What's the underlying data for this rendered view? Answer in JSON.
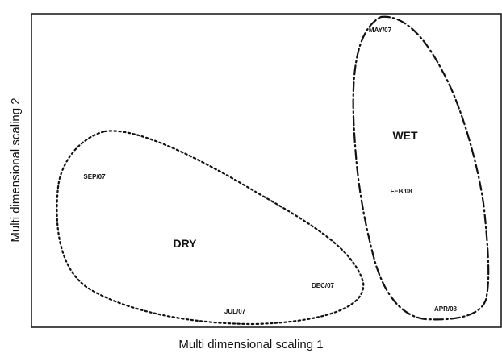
{
  "chart_data": {
    "type": "scatter",
    "title": "",
    "xlabel": "Multi dimensional scaling 1",
    "ylabel": "Multi dimensional scaling 2",
    "grid": false,
    "points": [
      {
        "label": "MAY/07"
      },
      {
        "label": "SEP/07"
      },
      {
        "label": "FEB/08"
      },
      {
        "label": "DEC/07"
      },
      {
        "label": "JUL/07"
      },
      {
        "label": "APR/08"
      }
    ],
    "groups": [
      {
        "label": "DRY",
        "members": [
          "SEP/07",
          "DEC/07",
          "JUL/07"
        ],
        "outline": "dotted"
      },
      {
        "label": "WET",
        "members": [
          "MAY/07",
          "FEB/08",
          "APR/08"
        ],
        "outline": "dash-dot"
      }
    ]
  },
  "colors": {
    "ink": "#111111",
    "background": "#ffffff"
  }
}
